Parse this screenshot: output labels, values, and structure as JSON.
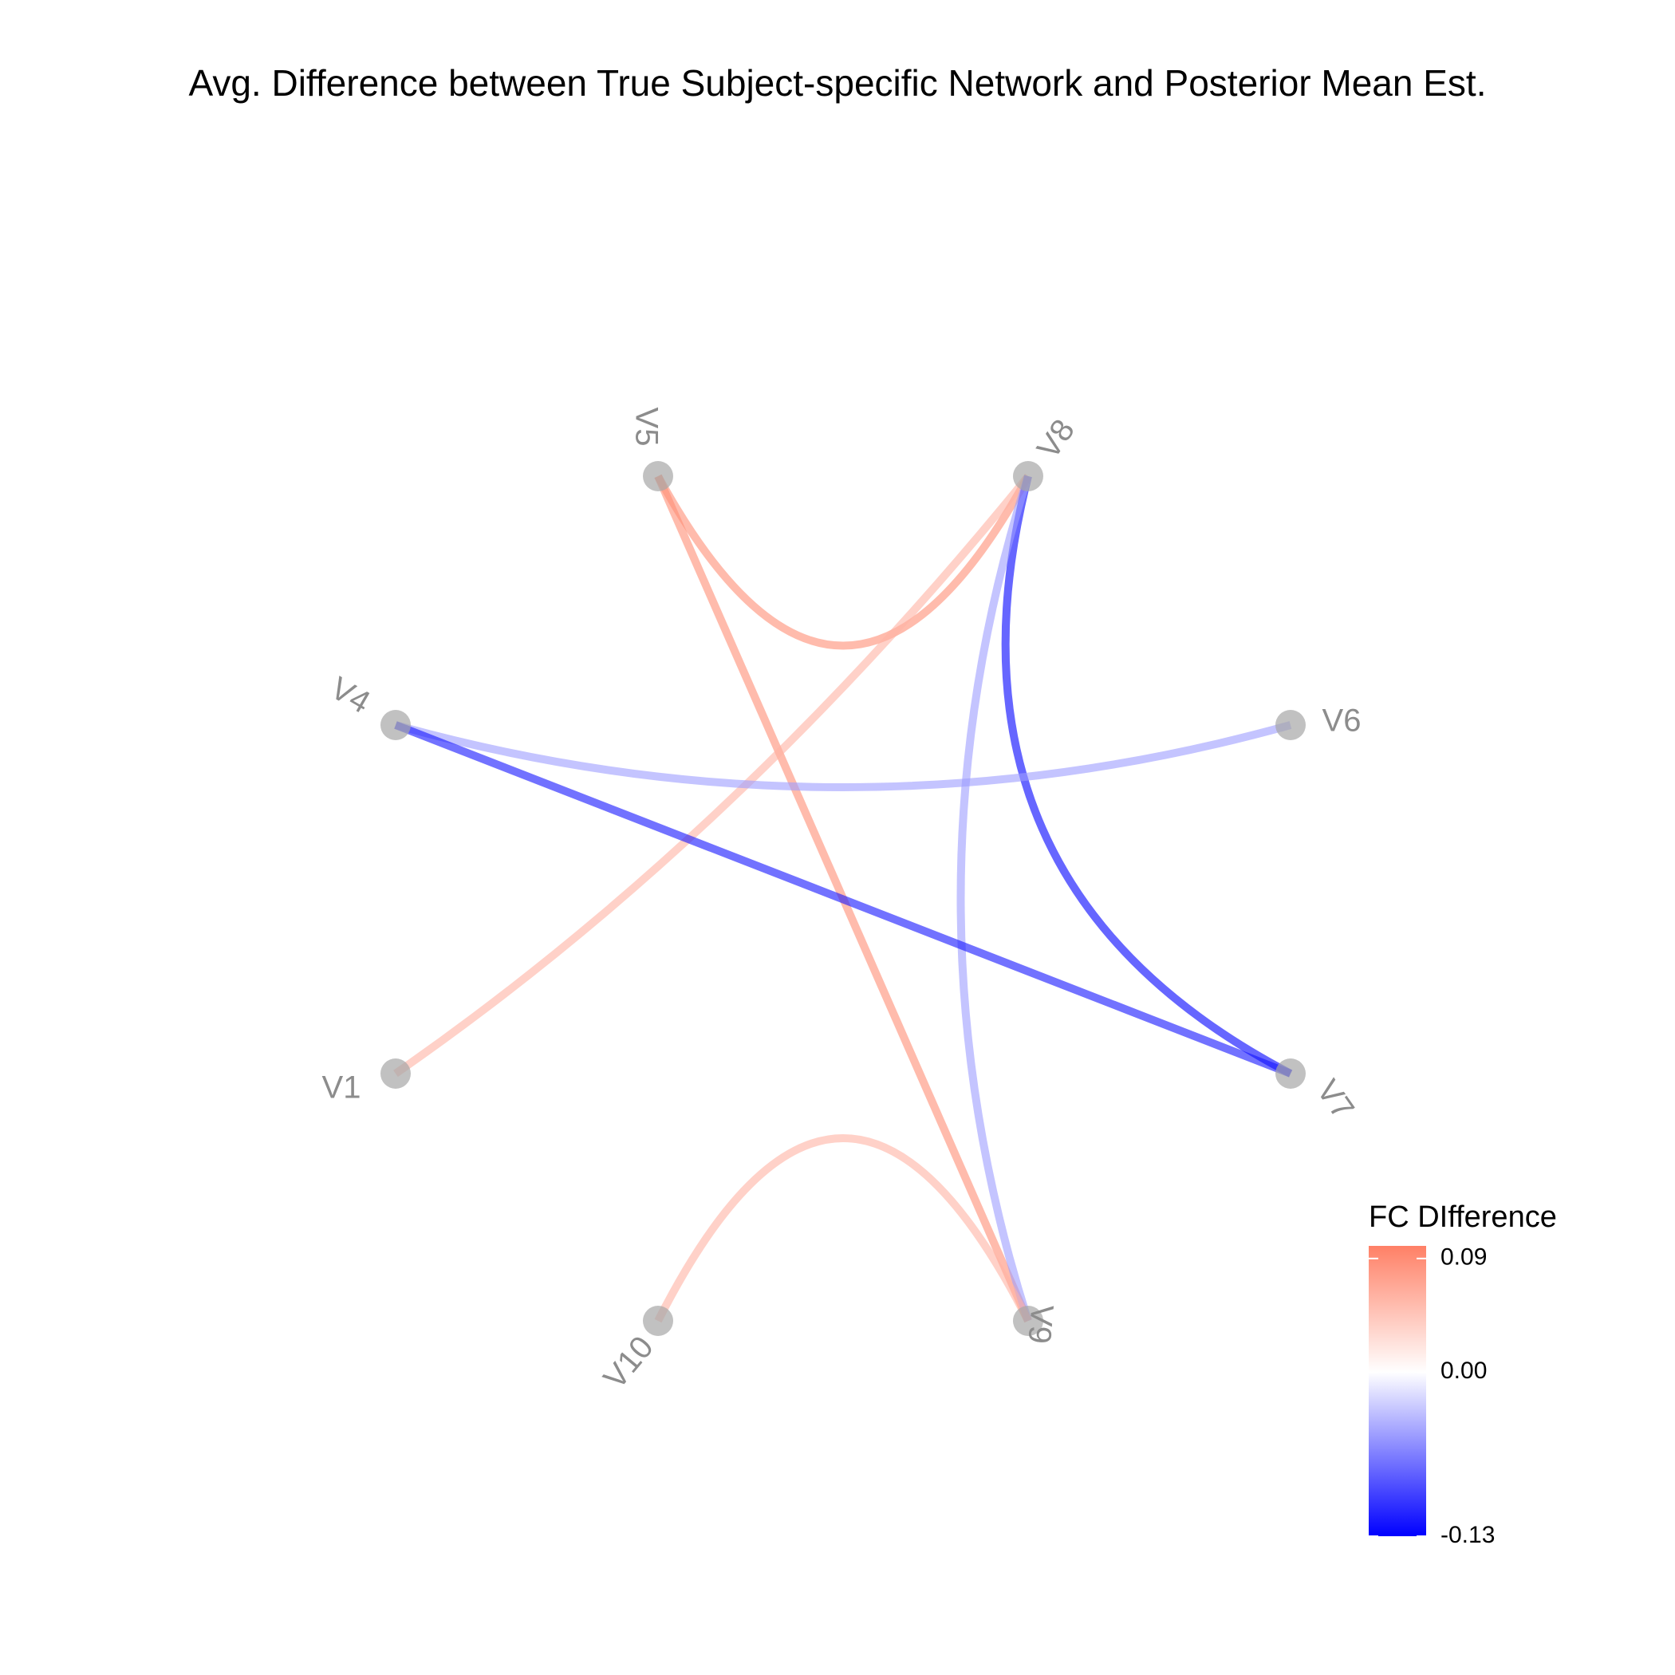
{
  "title": "Avg. Difference between True Subject-specific Network and Posterior Mean Est.",
  "chart_data": {
    "type": "network",
    "nodes": [
      "V1",
      "V4",
      "V5",
      "V8",
      "V6",
      "V7",
      "V9",
      "V10"
    ],
    "edges": [
      {
        "from": "V5",
        "to": "V8",
        "value": 0.09
      },
      {
        "from": "V5",
        "to": "V9",
        "value": 0.09
      },
      {
        "from": "V8",
        "to": "V1",
        "value": 0.06
      },
      {
        "from": "V8",
        "to": "V7",
        "value": -0.13
      },
      {
        "from": "V8",
        "to": "V9",
        "value": -0.05
      },
      {
        "from": "V4",
        "to": "V6",
        "value": -0.05
      },
      {
        "from": "V4",
        "to": "V7",
        "value": -0.12
      },
      {
        "from": "V10",
        "to": "V9",
        "value": 0.06
      }
    ],
    "legend": {
      "title": "FC DIfference",
      "ticks": [
        "0.09",
        "0.00",
        "-0.13"
      ],
      "min": -0.13,
      "max": 0.1,
      "low_color": "#0000ff",
      "mid_color": "#ffffff",
      "high_color": "#ff8066"
    }
  }
}
